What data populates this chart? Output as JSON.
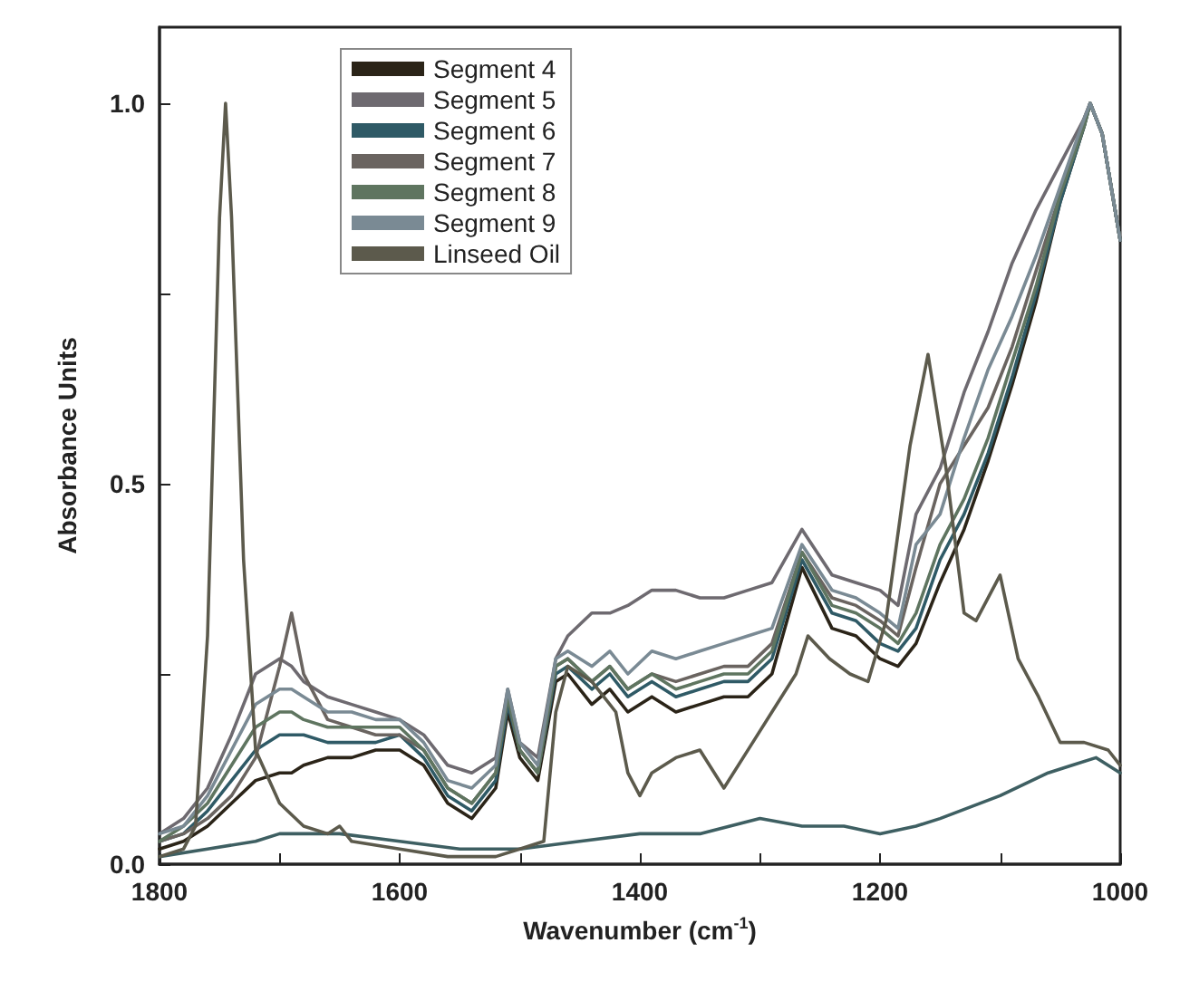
{
  "chart_data": {
    "type": "line",
    "xlabel": "Wavenumber (cm$^{-1}$)",
    "ylabel": "Absorbance Units",
    "xlim": [
      1800,
      1000
    ],
    "ylim": [
      0,
      1.1
    ],
    "xticks": [
      1800,
      {
        "value": 1700,
        "label": null
      },
      1600,
      {
        "value": 1500,
        "label": null
      },
      1400,
      {
        "value": 1300,
        "label": null
      },
      1200,
      {
        "value": 1100,
        "label": null
      },
      1000
    ],
    "yticks": [
      {
        "value": 0,
        "label": "0.0"
      },
      {
        "value": 0.25,
        "label": null
      },
      {
        "value": 0.5,
        "label": "0.5"
      },
      {
        "value": 0.75,
        "label": null
      },
      {
        "value": 1,
        "label": "1.0"
      }
    ],
    "x": [
      1800,
      1780,
      1760,
      1740,
      1720,
      1700,
      1690,
      1680,
      1660,
      1640,
      1620,
      1600,
      1580,
      1560,
      1540,
      1520,
      1510,
      1500,
      1485,
      1470,
      1460,
      1440,
      1425,
      1410,
      1390,
      1370,
      1350,
      1330,
      1310,
      1290,
      1265,
      1240,
      1220,
      1200,
      1185,
      1170,
      1150,
      1130,
      1110,
      1090,
      1070,
      1050,
      1030,
      1025,
      1015,
      1000
    ],
    "grid": false,
    "legend": "top left",
    "marker": "none",
    "line_style": "solid",
    "series": [
      {
        "name": "Segment 4",
        "color": "#2b2418",
        "values": [
          0.02,
          0.03,
          0.05,
          0.08,
          0.11,
          0.12,
          0.12,
          0.13,
          0.14,
          0.14,
          0.15,
          0.15,
          0.13,
          0.08,
          0.06,
          0.1,
          0.2,
          0.14,
          0.11,
          0.24,
          0.25,
          0.21,
          0.23,
          0.2,
          0.22,
          0.2,
          0.21,
          0.22,
          0.22,
          0.25,
          0.39,
          0.31,
          0.3,
          0.27,
          0.26,
          0.29,
          0.37,
          0.44,
          0.53,
          0.63,
          0.74,
          0.87,
          0.97,
          1.0,
          0.96,
          0.82
        ]
      },
      {
        "name": "Segment 5",
        "color": "#6e6a70",
        "values": [
          0.04,
          0.06,
          0.1,
          0.17,
          0.25,
          0.27,
          0.26,
          0.24,
          0.22,
          0.21,
          0.2,
          0.19,
          0.17,
          0.13,
          0.12,
          0.14,
          0.23,
          0.16,
          0.14,
          0.27,
          0.3,
          0.33,
          0.33,
          0.34,
          0.36,
          0.36,
          0.35,
          0.35,
          0.36,
          0.37,
          0.44,
          0.38,
          0.37,
          0.36,
          0.34,
          0.46,
          0.52,
          0.62,
          0.7,
          0.79,
          0.86,
          0.92,
          0.98,
          1.0,
          0.96,
          0.82
        ]
      },
      {
        "name": "Segment 6",
        "color": "#2f5a66",
        "values": [
          0.03,
          0.04,
          0.07,
          0.11,
          0.15,
          0.17,
          0.17,
          0.17,
          0.16,
          0.16,
          0.16,
          0.17,
          0.14,
          0.09,
          0.07,
          0.11,
          0.21,
          0.15,
          0.12,
          0.25,
          0.26,
          0.23,
          0.25,
          0.22,
          0.24,
          0.22,
          0.23,
          0.24,
          0.24,
          0.27,
          0.4,
          0.33,
          0.32,
          0.29,
          0.28,
          0.31,
          0.4,
          0.46,
          0.54,
          0.64,
          0.75,
          0.87,
          0.97,
          1.0,
          0.96,
          0.82
        ]
      },
      {
        "name": "Segment 7",
        "color": "#6a6460",
        "values": [
          0.03,
          0.04,
          0.06,
          0.09,
          0.14,
          0.26,
          0.33,
          0.25,
          0.19,
          0.18,
          0.17,
          0.17,
          0.15,
          0.1,
          0.08,
          0.12,
          0.22,
          0.15,
          0.12,
          0.26,
          0.27,
          0.24,
          0.26,
          0.23,
          0.25,
          0.24,
          0.25,
          0.26,
          0.26,
          0.29,
          0.41,
          0.35,
          0.34,
          0.32,
          0.3,
          0.39,
          0.5,
          0.55,
          0.6,
          0.68,
          0.78,
          0.88,
          0.98,
          1.0,
          0.96,
          0.82
        ]
      },
      {
        "name": "Segment 8",
        "color": "#5f7560",
        "values": [
          0.03,
          0.05,
          0.08,
          0.13,
          0.18,
          0.2,
          0.2,
          0.19,
          0.18,
          0.18,
          0.18,
          0.18,
          0.15,
          0.1,
          0.08,
          0.12,
          0.22,
          0.15,
          0.12,
          0.26,
          0.27,
          0.24,
          0.26,
          0.23,
          0.25,
          0.23,
          0.24,
          0.25,
          0.25,
          0.28,
          0.41,
          0.34,
          0.33,
          0.31,
          0.29,
          0.33,
          0.42,
          0.48,
          0.56,
          0.66,
          0.76,
          0.88,
          0.97,
          1.0,
          0.96,
          0.82
        ]
      },
      {
        "name": "Segment 9",
        "color": "#7a8a94",
        "values": [
          0.04,
          0.05,
          0.09,
          0.15,
          0.21,
          0.23,
          0.23,
          0.22,
          0.2,
          0.2,
          0.19,
          0.19,
          0.16,
          0.11,
          0.1,
          0.13,
          0.23,
          0.16,
          0.13,
          0.27,
          0.28,
          0.26,
          0.28,
          0.25,
          0.28,
          0.27,
          0.28,
          0.29,
          0.3,
          0.31,
          0.42,
          0.36,
          0.35,
          0.33,
          0.31,
          0.42,
          0.46,
          0.56,
          0.65,
          0.72,
          0.8,
          0.89,
          0.98,
          1.0,
          0.96,
          0.82
        ]
      },
      {
        "color": "#3e5f62",
        "x": [
          1800,
          1760,
          1720,
          1700,
          1650,
          1600,
          1550,
          1500,
          1450,
          1400,
          1350,
          1300,
          1265,
          1230,
          1200,
          1170,
          1150,
          1100,
          1060,
          1040,
          1020,
          1000
        ],
        "values": [
          0.01,
          0.02,
          0.03,
          0.04,
          0.04,
          0.03,
          0.02,
          0.02,
          0.03,
          0.04,
          0.04,
          0.06,
          0.05,
          0.05,
          0.04,
          0.05,
          0.06,
          0.09,
          0.12,
          0.13,
          0.14,
          0.12
        ]
      },
      {
        "name": "Linseed Oil",
        "color": "#5c5a4c",
        "x": [
          1800,
          1780,
          1770,
          1760,
          1750,
          1745,
          1740,
          1730,
          1720,
          1700,
          1680,
          1660,
          1650,
          1640,
          1600,
          1560,
          1520,
          1500,
          1480,
          1470,
          1460,
          1440,
          1420,
          1410,
          1400,
          1390,
          1370,
          1350,
          1330,
          1306,
          1290,
          1270,
          1260,
          1242,
          1225,
          1210,
          1195,
          1175,
          1160,
          1145,
          1130,
          1120,
          1100,
          1085,
          1068,
          1050,
          1030,
          1010,
          1000
        ],
        "values": [
          0.01,
          0.02,
          0.05,
          0.3,
          0.85,
          1.0,
          0.85,
          0.4,
          0.15,
          0.08,
          0.05,
          0.04,
          0.05,
          0.03,
          0.02,
          0.01,
          0.01,
          0.02,
          0.03,
          0.2,
          0.26,
          0.24,
          0.2,
          0.12,
          0.09,
          0.12,
          0.14,
          0.15,
          0.1,
          0.16,
          0.2,
          0.25,
          0.3,
          0.27,
          0.25,
          0.24,
          0.32,
          0.55,
          0.67,
          0.52,
          0.33,
          0.32,
          0.38,
          0.27,
          0.22,
          0.16,
          0.16,
          0.15,
          0.13
        ]
      }
    ]
  }
}
